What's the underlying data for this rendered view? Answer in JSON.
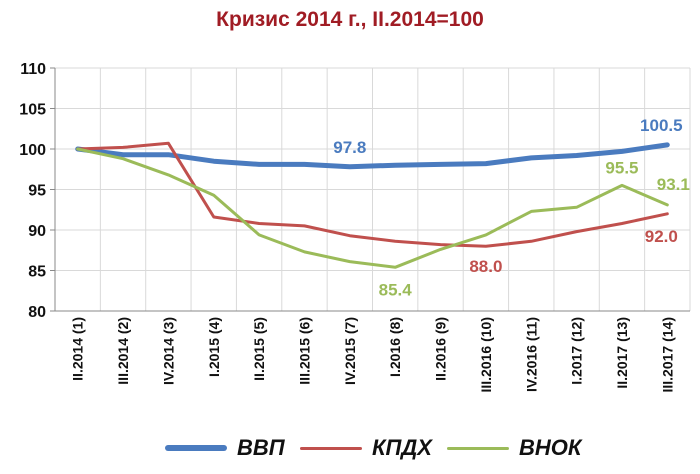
{
  "chart_data": {
    "type": "line",
    "title": "Кризис 2014 г., II.2014=100",
    "categories": [
      "II.2014 (1)",
      "III.2014 (2)",
      "IV.2014 (3)",
      "I.2015 (4)",
      "II.2015 (5)",
      "III.2015 (6)",
      "IV.2015 (7)",
      "I.2016 (8)",
      "II.2016 (9)",
      "III.2016 (10)",
      "IV.2016 (11)",
      "I.2017 (12)",
      "II.2017 (13)",
      "III.2017 (14)"
    ],
    "ylim": [
      80,
      110
    ],
    "yticks": [
      80,
      85,
      90,
      95,
      100,
      105,
      110
    ],
    "grid": true,
    "legend_position": "bottom",
    "series": [
      {
        "name": "ВВП",
        "color": "#4a7bbf",
        "width": 5,
        "values": [
          100,
          99.3,
          99.3,
          98.5,
          98.1,
          98.1,
          97.8,
          98.0,
          98.1,
          98.2,
          98.9,
          99.2,
          99.7,
          100.5
        ]
      },
      {
        "name": "КПДХ",
        "color": "#c0504d",
        "width": 3,
        "values": [
          100,
          100.2,
          100.7,
          91.6,
          90.8,
          90.5,
          89.3,
          88.6,
          88.2,
          88.0,
          88.6,
          89.8,
          90.8,
          92.0
        ]
      },
      {
        "name": "ВНОК",
        "color": "#9bbb59",
        "width": 3,
        "values": [
          100,
          98.8,
          96.8,
          94.3,
          89.4,
          87.3,
          86.1,
          85.4,
          87.6,
          89.4,
          92.3,
          92.8,
          95.5,
          93.1
        ]
      }
    ],
    "data_labels": [
      {
        "series": 0,
        "index": 6,
        "text": "97.8",
        "color": "#4a7bbf"
      },
      {
        "series": 0,
        "index": 13,
        "text": "100.5",
        "color": "#4a7bbf"
      },
      {
        "series": 1,
        "index": 9,
        "text": "88.0",
        "color": "#c0504d"
      },
      {
        "series": 1,
        "index": 13,
        "text": "92.0",
        "color": "#c0504d"
      },
      {
        "series": 2,
        "index": 7,
        "text": "85.4",
        "color": "#9bbb59"
      },
      {
        "series": 2,
        "index": 12,
        "text": "95.5",
        "color": "#9bbb59"
      },
      {
        "series": 2,
        "index": 13,
        "text": "93.1",
        "color": "#9bbb59"
      }
    ]
  }
}
